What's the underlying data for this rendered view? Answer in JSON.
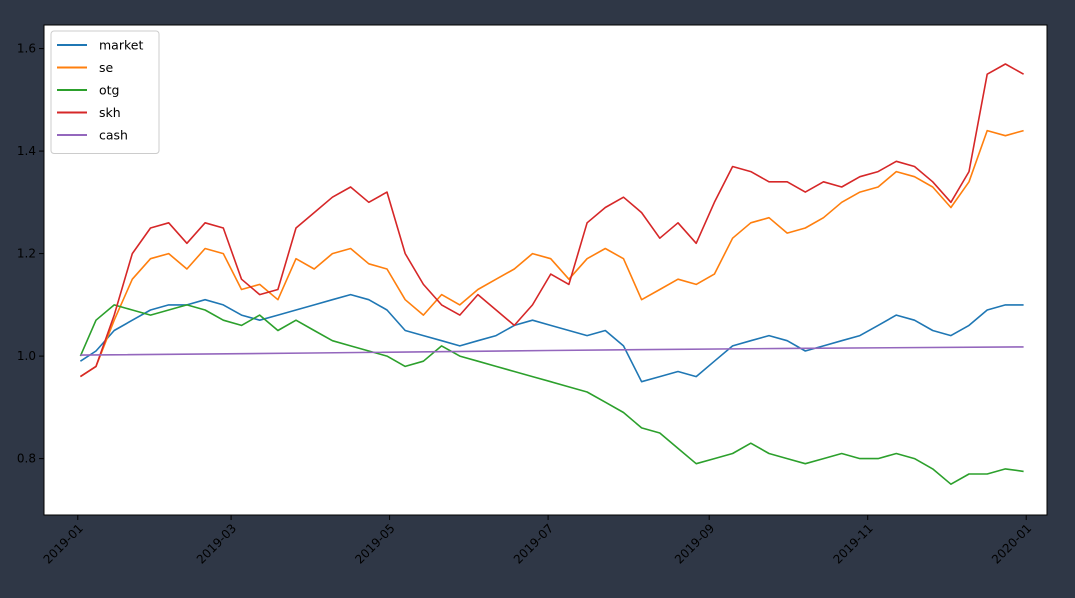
{
  "chart_data": {
    "type": "line",
    "title": "",
    "xlabel": "",
    "ylabel": "",
    "x_type": "date",
    "xlim": [
      "2018-12-19",
      "2020-01-09"
    ],
    "ylim": [
      0.69,
      1.646
    ],
    "x_ticks": [
      {
        "date": "2019-01-01",
        "label": "2019-01"
      },
      {
        "date": "2019-03-01",
        "label": "2019-03"
      },
      {
        "date": "2019-05-01",
        "label": "2019-05"
      },
      {
        "date": "2019-07-01",
        "label": "2019-07"
      },
      {
        "date": "2019-09-01",
        "label": "2019-09"
      },
      {
        "date": "2019-11-01",
        "label": "2019-11"
      },
      {
        "date": "2020-01-01",
        "label": "2020-01"
      }
    ],
    "y_ticks": [
      {
        "value": 0.8,
        "label": "0.8"
      },
      {
        "value": 1.0,
        "label": "1.0"
      },
      {
        "value": 1.2,
        "label": "1.2"
      },
      {
        "value": 1.4,
        "label": "1.4"
      },
      {
        "value": 1.6,
        "label": "1.6"
      }
    ],
    "grid": false,
    "legend": "top-left",
    "series": [
      {
        "name": "market",
        "color": "#1f77b4",
        "points": [
          [
            "2019-01-02",
            0.99
          ],
          [
            "2019-01-08",
            1.01
          ],
          [
            "2019-01-15",
            1.05
          ],
          [
            "2019-01-22",
            1.07
          ],
          [
            "2019-01-29",
            1.09
          ],
          [
            "2019-02-05",
            1.1
          ],
          [
            "2019-02-12",
            1.1
          ],
          [
            "2019-02-19",
            1.11
          ],
          [
            "2019-02-26",
            1.1
          ],
          [
            "2019-03-05",
            1.08
          ],
          [
            "2019-03-12",
            1.07
          ],
          [
            "2019-03-19",
            1.08
          ],
          [
            "2019-03-26",
            1.09
          ],
          [
            "2019-04-02",
            1.1
          ],
          [
            "2019-04-09",
            1.11
          ],
          [
            "2019-04-16",
            1.12
          ],
          [
            "2019-04-23",
            1.11
          ],
          [
            "2019-04-30",
            1.09
          ],
          [
            "2019-05-07",
            1.05
          ],
          [
            "2019-05-14",
            1.04
          ],
          [
            "2019-05-21",
            1.03
          ],
          [
            "2019-05-28",
            1.02
          ],
          [
            "2019-06-04",
            1.03
          ],
          [
            "2019-06-11",
            1.04
          ],
          [
            "2019-06-18",
            1.06
          ],
          [
            "2019-06-25",
            1.07
          ],
          [
            "2019-07-02",
            1.06
          ],
          [
            "2019-07-09",
            1.05
          ],
          [
            "2019-07-16",
            1.04
          ],
          [
            "2019-07-23",
            1.05
          ],
          [
            "2019-07-30",
            1.02
          ],
          [
            "2019-08-06",
            0.95
          ],
          [
            "2019-08-13",
            0.96
          ],
          [
            "2019-08-20",
            0.97
          ],
          [
            "2019-08-27",
            0.96
          ],
          [
            "2019-09-03",
            0.99
          ],
          [
            "2019-09-10",
            1.02
          ],
          [
            "2019-09-17",
            1.03
          ],
          [
            "2019-09-24",
            1.04
          ],
          [
            "2019-10-01",
            1.03
          ],
          [
            "2019-10-08",
            1.01
          ],
          [
            "2019-10-15",
            1.02
          ],
          [
            "2019-10-22",
            1.03
          ],
          [
            "2019-10-29",
            1.04
          ],
          [
            "2019-11-05",
            1.06
          ],
          [
            "2019-11-12",
            1.08
          ],
          [
            "2019-11-19",
            1.07
          ],
          [
            "2019-11-26",
            1.05
          ],
          [
            "2019-12-03",
            1.04
          ],
          [
            "2019-12-10",
            1.06
          ],
          [
            "2019-12-17",
            1.09
          ],
          [
            "2019-12-24",
            1.1
          ],
          [
            "2019-12-31",
            1.1
          ]
        ]
      },
      {
        "name": "se",
        "color": "#ff7f0e",
        "points": [
          [
            "2019-01-02",
            0.96
          ],
          [
            "2019-01-08",
            0.98
          ],
          [
            "2019-01-15",
            1.07
          ],
          [
            "2019-01-22",
            1.15
          ],
          [
            "2019-01-29",
            1.19
          ],
          [
            "2019-02-05",
            1.2
          ],
          [
            "2019-02-12",
            1.17
          ],
          [
            "2019-02-19",
            1.21
          ],
          [
            "2019-02-26",
            1.2
          ],
          [
            "2019-03-05",
            1.13
          ],
          [
            "2019-03-12",
            1.14
          ],
          [
            "2019-03-19",
            1.11
          ],
          [
            "2019-03-26",
            1.19
          ],
          [
            "2019-04-02",
            1.17
          ],
          [
            "2019-04-09",
            1.2
          ],
          [
            "2019-04-16",
            1.21
          ],
          [
            "2019-04-23",
            1.18
          ],
          [
            "2019-04-30",
            1.17
          ],
          [
            "2019-05-07",
            1.11
          ],
          [
            "2019-05-14",
            1.08
          ],
          [
            "2019-05-21",
            1.12
          ],
          [
            "2019-05-28",
            1.1
          ],
          [
            "2019-06-04",
            1.13
          ],
          [
            "2019-06-11",
            1.15
          ],
          [
            "2019-06-18",
            1.17
          ],
          [
            "2019-06-25",
            1.2
          ],
          [
            "2019-07-02",
            1.19
          ],
          [
            "2019-07-09",
            1.15
          ],
          [
            "2019-07-16",
            1.19
          ],
          [
            "2019-07-23",
            1.21
          ],
          [
            "2019-07-30",
            1.19
          ],
          [
            "2019-08-06",
            1.11
          ],
          [
            "2019-08-13",
            1.13
          ],
          [
            "2019-08-20",
            1.15
          ],
          [
            "2019-08-27",
            1.14
          ],
          [
            "2019-09-03",
            1.16
          ],
          [
            "2019-09-10",
            1.23
          ],
          [
            "2019-09-17",
            1.26
          ],
          [
            "2019-09-24",
            1.27
          ],
          [
            "2019-10-01",
            1.24
          ],
          [
            "2019-10-08",
            1.25
          ],
          [
            "2019-10-15",
            1.27
          ],
          [
            "2019-10-22",
            1.3
          ],
          [
            "2019-10-29",
            1.32
          ],
          [
            "2019-11-05",
            1.33
          ],
          [
            "2019-11-12",
            1.36
          ],
          [
            "2019-11-19",
            1.35
          ],
          [
            "2019-11-26",
            1.33
          ],
          [
            "2019-12-03",
            1.29
          ],
          [
            "2019-12-10",
            1.34
          ],
          [
            "2019-12-17",
            1.44
          ],
          [
            "2019-12-24",
            1.43
          ],
          [
            "2019-12-31",
            1.44
          ]
        ]
      },
      {
        "name": "otg",
        "color": "#2ca02c",
        "points": [
          [
            "2019-01-02",
            1.0
          ],
          [
            "2019-01-08",
            1.07
          ],
          [
            "2019-01-15",
            1.1
          ],
          [
            "2019-01-22",
            1.09
          ],
          [
            "2019-01-29",
            1.08
          ],
          [
            "2019-02-05",
            1.09
          ],
          [
            "2019-02-12",
            1.1
          ],
          [
            "2019-02-19",
            1.09
          ],
          [
            "2019-02-26",
            1.07
          ],
          [
            "2019-03-05",
            1.06
          ],
          [
            "2019-03-12",
            1.08
          ],
          [
            "2019-03-19",
            1.05
          ],
          [
            "2019-03-26",
            1.07
          ],
          [
            "2019-04-02",
            1.05
          ],
          [
            "2019-04-09",
            1.03
          ],
          [
            "2019-04-16",
            1.02
          ],
          [
            "2019-04-23",
            1.01
          ],
          [
            "2019-04-30",
            1.0
          ],
          [
            "2019-05-07",
            0.98
          ],
          [
            "2019-05-14",
            0.99
          ],
          [
            "2019-05-21",
            1.02
          ],
          [
            "2019-05-28",
            1.0
          ],
          [
            "2019-06-04",
            0.99
          ],
          [
            "2019-06-11",
            0.98
          ],
          [
            "2019-06-18",
            0.97
          ],
          [
            "2019-06-25",
            0.96
          ],
          [
            "2019-07-02",
            0.95
          ],
          [
            "2019-07-09",
            0.94
          ],
          [
            "2019-07-16",
            0.93
          ],
          [
            "2019-07-23",
            0.91
          ],
          [
            "2019-07-30",
            0.89
          ],
          [
            "2019-08-06",
            0.86
          ],
          [
            "2019-08-13",
            0.85
          ],
          [
            "2019-08-20",
            0.82
          ],
          [
            "2019-08-27",
            0.79
          ],
          [
            "2019-09-03",
            0.8
          ],
          [
            "2019-09-10",
            0.81
          ],
          [
            "2019-09-17",
            0.83
          ],
          [
            "2019-09-24",
            0.81
          ],
          [
            "2019-10-01",
            0.8
          ],
          [
            "2019-10-08",
            0.79
          ],
          [
            "2019-10-15",
            0.8
          ],
          [
            "2019-10-22",
            0.81
          ],
          [
            "2019-10-29",
            0.8
          ],
          [
            "2019-11-05",
            0.8
          ],
          [
            "2019-11-12",
            0.81
          ],
          [
            "2019-11-19",
            0.8
          ],
          [
            "2019-11-26",
            0.78
          ],
          [
            "2019-12-03",
            0.75
          ],
          [
            "2019-12-10",
            0.77
          ],
          [
            "2019-12-17",
            0.77
          ],
          [
            "2019-12-24",
            0.78
          ],
          [
            "2019-12-31",
            0.775
          ]
        ]
      },
      {
        "name": "skh",
        "color": "#d62728",
        "points": [
          [
            "2019-01-02",
            0.96
          ],
          [
            "2019-01-08",
            0.98
          ],
          [
            "2019-01-15",
            1.08
          ],
          [
            "2019-01-22",
            1.2
          ],
          [
            "2019-01-29",
            1.25
          ],
          [
            "2019-02-05",
            1.26
          ],
          [
            "2019-02-12",
            1.22
          ],
          [
            "2019-02-19",
            1.26
          ],
          [
            "2019-02-26",
            1.25
          ],
          [
            "2019-03-05",
            1.15
          ],
          [
            "2019-03-12",
            1.12
          ],
          [
            "2019-03-19",
            1.13
          ],
          [
            "2019-03-26",
            1.25
          ],
          [
            "2019-04-02",
            1.28
          ],
          [
            "2019-04-09",
            1.31
          ],
          [
            "2019-04-16",
            1.33
          ],
          [
            "2019-04-23",
            1.3
          ],
          [
            "2019-04-30",
            1.32
          ],
          [
            "2019-05-07",
            1.2
          ],
          [
            "2019-05-14",
            1.14
          ],
          [
            "2019-05-21",
            1.1
          ],
          [
            "2019-05-28",
            1.08
          ],
          [
            "2019-06-04",
            1.12
          ],
          [
            "2019-06-11",
            1.09
          ],
          [
            "2019-06-18",
            1.06
          ],
          [
            "2019-06-25",
            1.1
          ],
          [
            "2019-07-02",
            1.16
          ],
          [
            "2019-07-09",
            1.14
          ],
          [
            "2019-07-16",
            1.26
          ],
          [
            "2019-07-23",
            1.29
          ],
          [
            "2019-07-30",
            1.31
          ],
          [
            "2019-08-06",
            1.28
          ],
          [
            "2019-08-13",
            1.23
          ],
          [
            "2019-08-20",
            1.26
          ],
          [
            "2019-08-27",
            1.22
          ],
          [
            "2019-09-03",
            1.3
          ],
          [
            "2019-09-10",
            1.37
          ],
          [
            "2019-09-17",
            1.36
          ],
          [
            "2019-09-24",
            1.34
          ],
          [
            "2019-10-01",
            1.34
          ],
          [
            "2019-10-08",
            1.32
          ],
          [
            "2019-10-15",
            1.34
          ],
          [
            "2019-10-22",
            1.33
          ],
          [
            "2019-10-29",
            1.35
          ],
          [
            "2019-11-05",
            1.36
          ],
          [
            "2019-11-12",
            1.38
          ],
          [
            "2019-11-19",
            1.37
          ],
          [
            "2019-11-26",
            1.34
          ],
          [
            "2019-12-03",
            1.3
          ],
          [
            "2019-12-10",
            1.36
          ],
          [
            "2019-12-17",
            1.55
          ],
          [
            "2019-12-24",
            1.57
          ],
          [
            "2019-12-31",
            1.55
          ]
        ]
      },
      {
        "name": "cash",
        "color": "#9467bd",
        "points": [
          [
            "2019-01-02",
            1.002
          ],
          [
            "2019-04-01",
            1.006
          ],
          [
            "2019-07-01",
            1.011
          ],
          [
            "2019-10-01",
            1.015
          ],
          [
            "2019-12-31",
            1.018
          ]
        ]
      }
    ]
  }
}
